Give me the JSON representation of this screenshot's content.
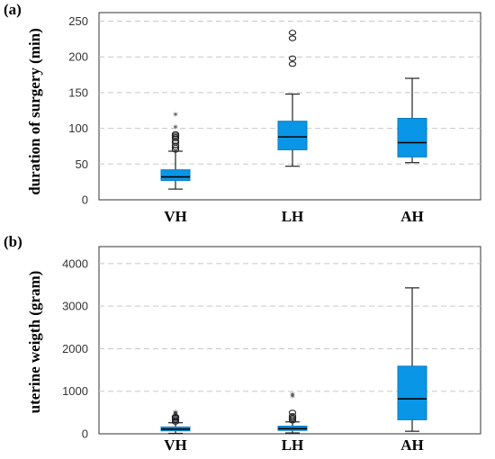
{
  "chart_data": [
    {
      "panel": "(a)",
      "type": "box",
      "ylabel": "duration of surgery (min)",
      "ylim": [
        0,
        262
      ],
      "yticks": [
        0,
        50,
        100,
        150,
        200,
        250
      ],
      "grid": true,
      "categories": [
        "VH",
        "LH",
        "AH"
      ],
      "boxes": [
        {
          "category": "VH",
          "whisker_low": 15,
          "q1": 27,
          "median": 32,
          "q3": 42,
          "whisker_high": 68,
          "outliers": [
            70,
            73,
            76,
            80,
            82,
            86,
            88,
            90,
            92
          ],
          "extremes": [
            100,
            118
          ]
        },
        {
          "category": "LH",
          "whisker_low": 47,
          "q1": 70,
          "median": 88,
          "q3": 110,
          "whisker_high": 148,
          "outliers": [
            190,
            198,
            226,
            234
          ],
          "extremes": []
        },
        {
          "category": "AH",
          "whisker_low": 52,
          "q1": 60,
          "median": 80,
          "q3": 114,
          "whisker_high": 170,
          "outliers": [],
          "extremes": []
        }
      ]
    },
    {
      "panel": "(b)",
      "type": "box",
      "ylabel": "uterine weigth (gram)",
      "ylim": [
        0,
        4400
      ],
      "yticks": [
        0,
        1000,
        2000,
        3000,
        4000
      ],
      "grid": true,
      "categories": [
        "VH",
        "LH",
        "AH"
      ],
      "boxes": [
        {
          "category": "VH",
          "whisker_low": 10,
          "q1": 70,
          "median": 110,
          "q3": 160,
          "whisker_high": 260,
          "outliers": [
            280,
            320,
            350,
            380,
            400
          ],
          "extremes": [
            420,
            450,
            480
          ]
        },
        {
          "category": "LH",
          "whisker_low": 20,
          "q1": 80,
          "median": 120,
          "q3": 180,
          "whisker_high": 280,
          "outliers": [
            310,
            350,
            380,
            420,
            500
          ],
          "extremes": [
            860,
            900
          ]
        },
        {
          "category": "AH",
          "whisker_low": 60,
          "q1": 330,
          "median": 820,
          "q3": 1590,
          "whisker_high": 3430,
          "outliers": [],
          "extremes": []
        }
      ]
    }
  ]
}
